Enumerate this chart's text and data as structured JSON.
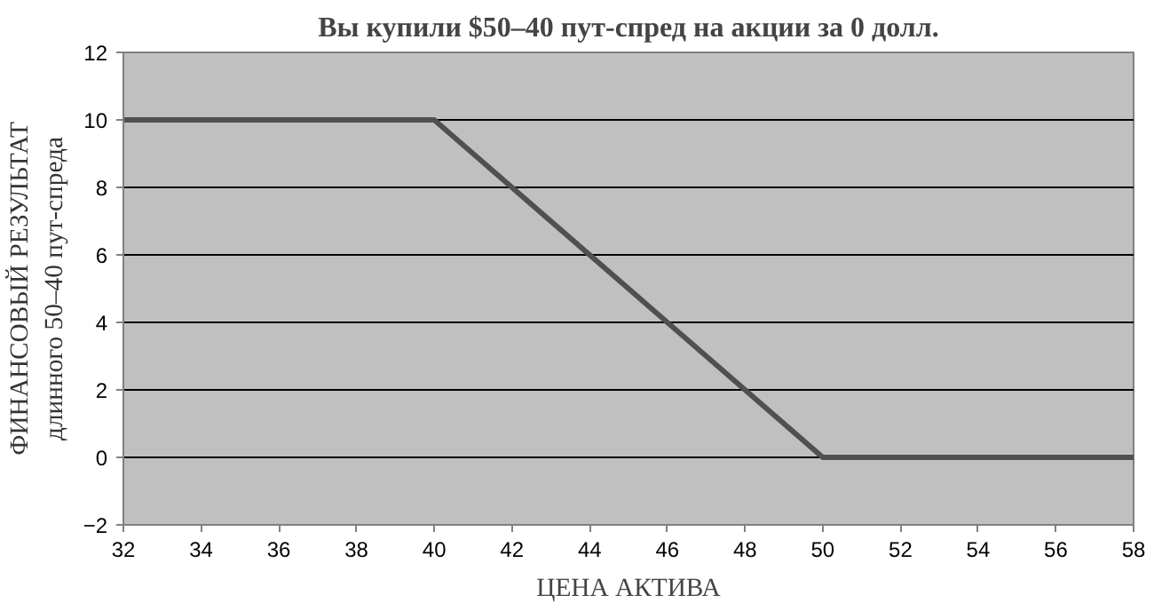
{
  "chart_data": {
    "type": "line",
    "title": "Вы купили $50–40 пут-спред на акции за 0 долл.",
    "xlabel": "ЦЕНА АКТИВА",
    "ylabel": "ФИНАНСОВЫЙ РЕЗУЛЬТАТ\nдлинного 50–40 пут-спреда",
    "x": [
      32,
      40,
      50,
      58
    ],
    "series": [
      {
        "color": "#505050",
        "values": [
          10,
          10,
          0,
          0
        ]
      }
    ],
    "xlim": [
      32,
      58
    ],
    "xticks": [
      32,
      34,
      36,
      38,
      40,
      42,
      44,
      46,
      48,
      50,
      52,
      54,
      56,
      58
    ],
    "ylim": [
      -2,
      12
    ],
    "yticks": [
      -2,
      0,
      2,
      4,
      6,
      8,
      10,
      12
    ],
    "grid": "y",
    "marker": "none",
    "line_style": "solid"
  }
}
